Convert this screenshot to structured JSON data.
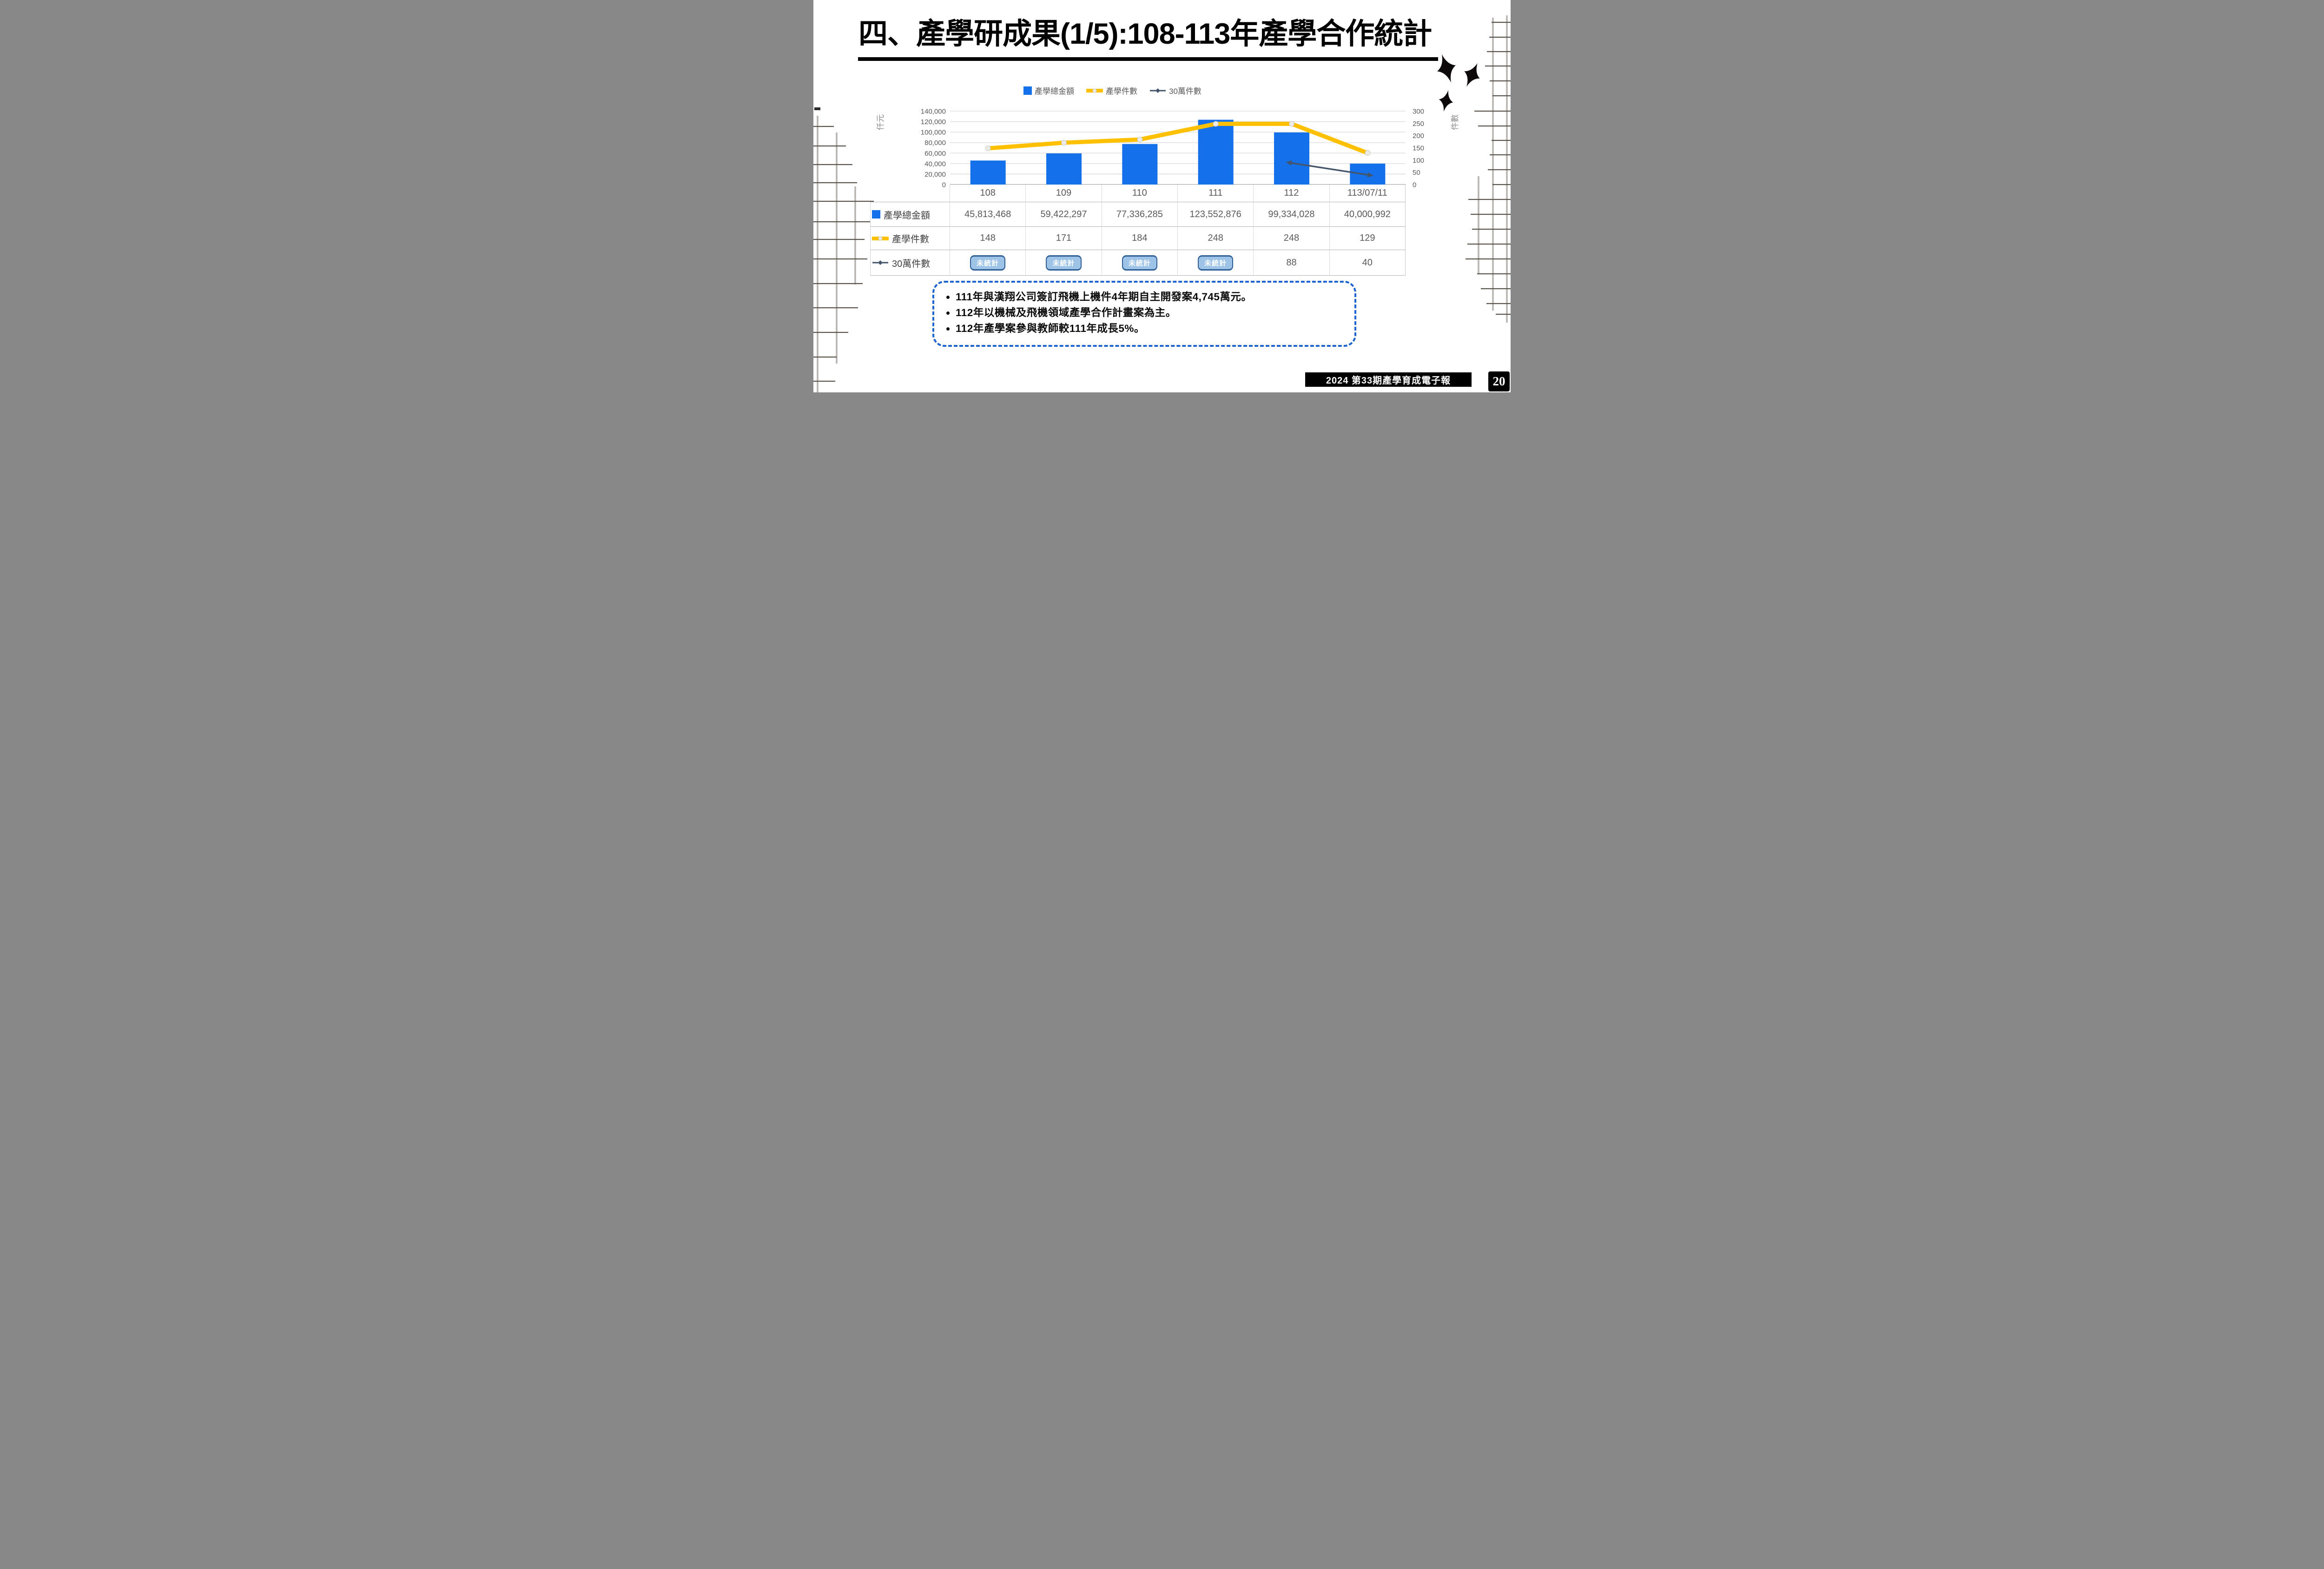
{
  "slide": {
    "title": "四、產學研成果(1/5):108-113年產學合作統計",
    "footer": {
      "publication": "2024  第33期產學育成電子報",
      "page_number": "20"
    }
  },
  "chart_data": {
    "type": "combo",
    "title": "",
    "categories": [
      "108",
      "109",
      "110",
      "111",
      "112",
      "113/07/11"
    ],
    "series": [
      {
        "name": "產學總金額",
        "chart_type": "bar",
        "axis": "left",
        "color": "#1571EA",
        "values_thousand": [
          45813,
          59422,
          77336,
          123553,
          99334,
          40001
        ]
      },
      {
        "name": "產學件數",
        "chart_type": "line",
        "axis": "right",
        "color": "#FFC000",
        "values": [
          148,
          171,
          184,
          248,
          248,
          129
        ]
      },
      {
        "name": "30萬件數",
        "chart_type": "line",
        "axis": "right",
        "color": "#44546A",
        "values": [
          null,
          null,
          null,
          null,
          88,
          40
        ]
      }
    ],
    "left_axis": {
      "title": "仟元",
      "min": 0,
      "max": 140000,
      "tick_labels": [
        "140,000",
        "120,000",
        "100,000",
        "80,000",
        "60,000",
        "40,000",
        "20,000",
        "0"
      ]
    },
    "right_axis": {
      "title": "件數",
      "min": 0,
      "max": 300,
      "tick_labels": [
        "300",
        "250",
        "200",
        "150",
        "100",
        "50",
        "0"
      ]
    },
    "legend_position": "top",
    "grid": "horizontal",
    "data_table": {
      "not_counted_text": "未統計",
      "rows": [
        {
          "label": "產學總金額",
          "cells": [
            "45,813,468",
            "59,422,297",
            "77,336,285",
            "123,552,876",
            "99,334,028",
            "40,000,992"
          ]
        },
        {
          "label": "產學件數",
          "cells": [
            "148",
            "171",
            "184",
            "248",
            "248",
            "129"
          ]
        },
        {
          "label": "30萬件數",
          "cells": [
            "未統計",
            "未統計",
            "未統計",
            "未統計",
            "88",
            "40"
          ]
        }
      ]
    }
  },
  "notes": {
    "bullets": [
      "111年與漢翔公司簽訂飛機上機件4年期自主開發案4,745萬元。",
      "112年以機械及飛機領域產學合作計畫案為主。",
      "112年產學案參與教師較111年成長5%。"
    ]
  }
}
